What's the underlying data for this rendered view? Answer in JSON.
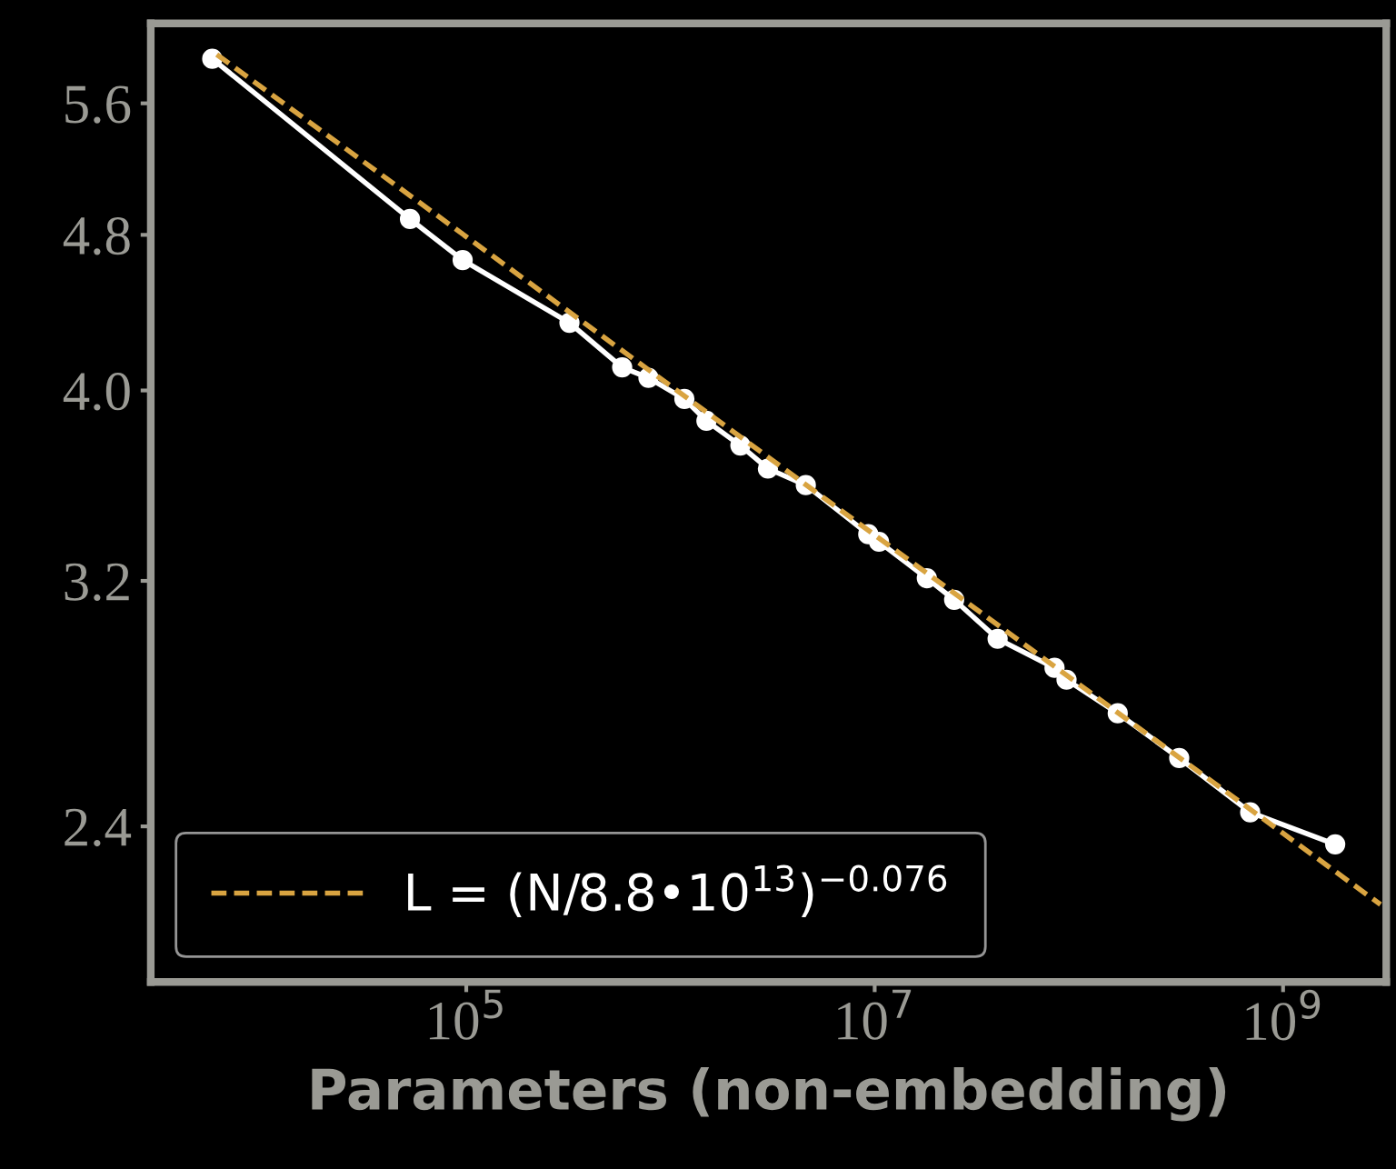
{
  "chart_data": {
    "type": "line",
    "xlabel": "Parameters (non-embedding)",
    "log": "xy",
    "grid": false,
    "legend": "bottom left",
    "xlim": [
      2850,
      3200000000.0
    ],
    "ylim": [
      2.0,
      6.15
    ],
    "xticks": [
      {
        "value": 100000,
        "label": "10$^{5}$"
      },
      {
        "value": 10000000,
        "label": "10$^{7}$"
      },
      {
        "value": 1000000000,
        "label": "10$^{9}$"
      }
    ],
    "yticks": [
      {
        "value": 2.4,
        "label": "2.4"
      },
      {
        "value": 3.2,
        "label": "3.2"
      },
      {
        "value": 4.0,
        "label": "4.0"
      },
      {
        "value": 4.8,
        "label": "4.8"
      },
      {
        "value": 5.6,
        "label": "5.6"
      }
    ],
    "series": [
      {
        "color": "#ffffff",
        "marker": "circle",
        "line_style": "solid",
        "x": [
          5700,
          53000,
          96000,
          320000,
          580000,
          780000,
          1170000,
          1500000,
          2200000,
          3000000,
          4600000,
          9300000,
          10500000,
          18000000,
          24500000,
          40000000,
          76000000,
          87000000,
          155000000,
          310000000,
          690000000,
          1800000000
        ],
        "values": [
          5.9,
          4.89,
          4.66,
          4.33,
          4.11,
          4.06,
          3.96,
          3.86,
          3.75,
          3.65,
          3.58,
          3.38,
          3.35,
          3.21,
          3.13,
          2.99,
          2.89,
          2.85,
          2.74,
          2.6,
          2.44,
          2.35
        ]
      },
      {
        "name": "L = (N/8.8•10$^{13}$)$^{−0.076}$",
        "color": "#d9a441",
        "marker": "none",
        "line_style": "dashed",
        "x": [
          6000,
          3000000000
        ],
        "values": [
          5.93,
          2.19
        ]
      }
    ]
  }
}
